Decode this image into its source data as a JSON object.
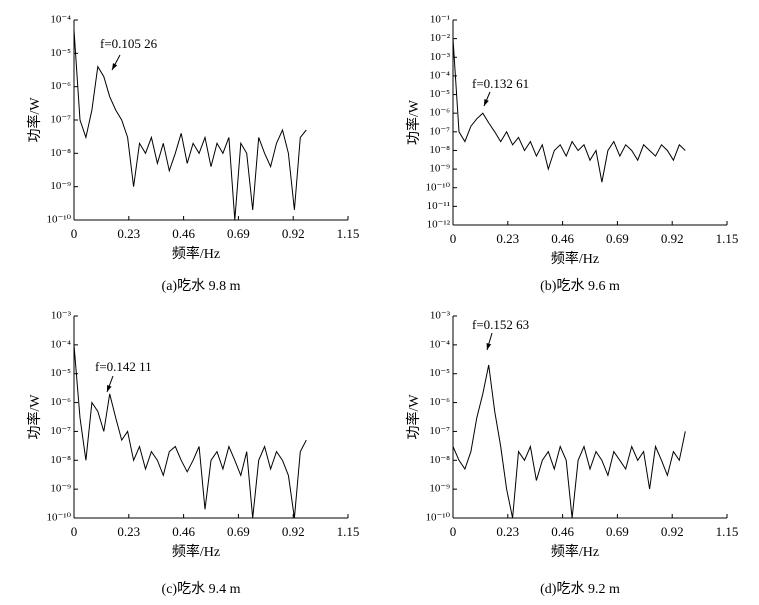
{
  "chart_data": [
    {
      "type": "line",
      "log_y": true,
      "color": "#000000",
      "y_label": "功率/W",
      "x_label": "频率/Hz",
      "caption": "(a)吃水 9.8 m",
      "annotation": "f=0.105 26",
      "xlim": [
        0,
        1.15
      ],
      "xticks": [
        0,
        0.23,
        0.46,
        0.69,
        0.92,
        1.15
      ],
      "ylim": [
        1e-10,
        0.0001
      ],
      "yticks": [
        {
          "value": 1e-10,
          "label": "10⁻¹⁰"
        },
        {
          "value": 1e-09,
          "label": "10⁻⁹"
        },
        {
          "value": 1e-08,
          "label": "10⁻⁸"
        },
        {
          "value": 1e-07,
          "label": "10⁻⁷"
        },
        {
          "value": 1e-06,
          "label": "10⁻⁶"
        },
        {
          "value": 1e-05,
          "label": "10⁻⁵"
        },
        {
          "value": 0.0001,
          "label": "10⁻⁴"
        }
      ],
      "x": [
        0,
        0.025,
        0.05,
        0.075,
        0.1,
        0.125,
        0.15,
        0.175,
        0.2,
        0.225,
        0.25,
        0.275,
        0.3,
        0.325,
        0.35,
        0.375,
        0.4,
        0.425,
        0.45,
        0.475,
        0.5,
        0.525,
        0.55,
        0.575,
        0.6,
        0.625,
        0.65,
        0.675,
        0.7,
        0.725,
        0.75,
        0.775,
        0.8,
        0.825,
        0.85,
        0.875,
        0.9,
        0.925,
        0.95,
        0.975
      ],
      "values": [
        5e-05,
        1e-07,
        3e-08,
        2e-07,
        4e-06,
        2e-06,
        5e-07,
        2e-07,
        1e-07,
        3e-08,
        1e-09,
        2e-08,
        1e-08,
        3e-08,
        5e-09,
        2e-08,
        3e-09,
        1e-08,
        4e-08,
        5e-09,
        2e-08,
        1e-08,
        3e-08,
        4e-09,
        2e-08,
        1e-08,
        3e-08,
        1e-10,
        2e-08,
        1e-08,
        2e-10,
        3e-08,
        1e-08,
        4e-09,
        2e-08,
        5e-08,
        1e-08,
        2e-10,
        3e-08,
        5e-08
      ]
    },
    {
      "type": "line",
      "log_y": true,
      "color": "#000000",
      "y_label": "功率/W",
      "x_label": "频率/Hz",
      "caption": "(b)吃水 9.6 m",
      "annotation": "f=0.132 61",
      "xlim": [
        0,
        1.15
      ],
      "xticks": [
        0,
        0.23,
        0.46,
        0.69,
        0.92,
        1.15
      ],
      "ylim": [
        1e-12,
        0.1
      ],
      "yticks": [
        {
          "value": 1e-12,
          "label": "10⁻¹²"
        },
        {
          "value": 1e-11,
          "label": "10⁻¹¹"
        },
        {
          "value": 1e-10,
          "label": "10⁻¹⁰"
        },
        {
          "value": 1e-09,
          "label": "10⁻⁹"
        },
        {
          "value": 1e-08,
          "label": "10⁻⁸"
        },
        {
          "value": 1e-07,
          "label": "10⁻⁷"
        },
        {
          "value": 1e-06,
          "label": "10⁻⁶"
        },
        {
          "value": 1e-05,
          "label": "10⁻⁵"
        },
        {
          "value": 0.0001,
          "label": "10⁻⁴"
        },
        {
          "value": 0.001,
          "label": "10⁻³"
        },
        {
          "value": 0.01,
          "label": "10⁻²"
        },
        {
          "value": 0.1,
          "label": "10⁻¹"
        }
      ],
      "x": [
        0,
        0.025,
        0.05,
        0.075,
        0.1,
        0.125,
        0.15,
        0.175,
        0.2,
        0.225,
        0.25,
        0.275,
        0.3,
        0.325,
        0.35,
        0.375,
        0.4,
        0.425,
        0.45,
        0.475,
        0.5,
        0.525,
        0.55,
        0.575,
        0.6,
        0.625,
        0.65,
        0.675,
        0.7,
        0.725,
        0.75,
        0.775,
        0.8,
        0.825,
        0.85,
        0.875,
        0.9,
        0.925,
        0.95,
        0.975
      ],
      "values": [
        0.01,
        1e-07,
        3e-08,
        2e-07,
        5e-07,
        1e-06,
        3e-07,
        1e-07,
        3e-08,
        1e-07,
        2e-08,
        5e-08,
        1e-08,
        3e-08,
        5e-09,
        2e-08,
        1e-09,
        1e-08,
        2e-08,
        5e-09,
        3e-08,
        1e-08,
        2e-08,
        3e-09,
        1e-08,
        2e-10,
        1e-08,
        3e-08,
        5e-09,
        2e-08,
        1e-08,
        3e-09,
        2e-08,
        1e-08,
        5e-09,
        2e-08,
        1e-08,
        3e-09,
        2e-08,
        1e-08
      ]
    },
    {
      "type": "line",
      "log_y": true,
      "color": "#000000",
      "y_label": "功率/W",
      "x_label": "频率/Hz",
      "caption": "(c)吃水 9.4 m",
      "annotation": "f=0.142 11",
      "xlim": [
        0,
        1.15
      ],
      "xticks": [
        0,
        0.23,
        0.46,
        0.69,
        0.92,
        1.15
      ],
      "ylim": [
        1e-10,
        0.001
      ],
      "yticks": [
        {
          "value": 1e-10,
          "label": "10⁻¹⁰"
        },
        {
          "value": 1e-09,
          "label": "10⁻⁹"
        },
        {
          "value": 1e-08,
          "label": "10⁻⁸"
        },
        {
          "value": 1e-07,
          "label": "10⁻⁷"
        },
        {
          "value": 1e-06,
          "label": "10⁻⁶"
        },
        {
          "value": 1e-05,
          "label": "10⁻⁵"
        },
        {
          "value": 0.0001,
          "label": "10⁻⁴"
        },
        {
          "value": 0.001,
          "label": "10⁻³"
        }
      ],
      "x": [
        0,
        0.025,
        0.05,
        0.075,
        0.1,
        0.125,
        0.15,
        0.175,
        0.2,
        0.225,
        0.25,
        0.275,
        0.3,
        0.325,
        0.35,
        0.375,
        0.4,
        0.425,
        0.45,
        0.475,
        0.5,
        0.525,
        0.55,
        0.575,
        0.6,
        0.625,
        0.65,
        0.675,
        0.7,
        0.725,
        0.75,
        0.775,
        0.8,
        0.825,
        0.85,
        0.875,
        0.9,
        0.925,
        0.95,
        0.975
      ],
      "values": [
        0.0001,
        3e-07,
        1e-08,
        1e-06,
        5e-07,
        1e-07,
        2e-06,
        3e-07,
        5e-08,
        1e-07,
        1e-08,
        3e-08,
        5e-09,
        2e-08,
        1e-08,
        3e-09,
        2e-08,
        3e-08,
        1e-08,
        4e-09,
        1e-08,
        3e-08,
        2e-10,
        1e-08,
        2e-08,
        5e-09,
        3e-08,
        1e-08,
        3e-09,
        2e-08,
        1e-10,
        1e-08,
        3e-08,
        5e-09,
        2e-08,
        1e-08,
        3e-09,
        1e-10,
        2e-08,
        5e-08
      ]
    },
    {
      "type": "line",
      "log_y": true,
      "color": "#000000",
      "y_label": "功率/W",
      "x_label": "频率/Hz",
      "caption": "(d)吃水 9.2 m",
      "annotation": "f=0.152 63",
      "xlim": [
        0,
        1.15
      ],
      "xticks": [
        0,
        0.23,
        0.46,
        0.69,
        0.92,
        1.15
      ],
      "ylim": [
        1e-10,
        0.001
      ],
      "yticks": [
        {
          "value": 1e-10,
          "label": "10⁻¹⁰"
        },
        {
          "value": 1e-09,
          "label": "10⁻⁹"
        },
        {
          "value": 1e-08,
          "label": "10⁻⁸"
        },
        {
          "value": 1e-07,
          "label": "10⁻⁷"
        },
        {
          "value": 1e-06,
          "label": "10⁻⁶"
        },
        {
          "value": 1e-05,
          "label": "10⁻⁵"
        },
        {
          "value": 0.0001,
          "label": "10⁻⁴"
        },
        {
          "value": 0.001,
          "label": "10⁻³"
        }
      ],
      "x": [
        0,
        0.025,
        0.05,
        0.075,
        0.1,
        0.125,
        0.15,
        0.175,
        0.2,
        0.225,
        0.25,
        0.275,
        0.3,
        0.325,
        0.35,
        0.375,
        0.4,
        0.425,
        0.45,
        0.475,
        0.5,
        0.525,
        0.55,
        0.575,
        0.6,
        0.625,
        0.65,
        0.675,
        0.7,
        0.725,
        0.75,
        0.775,
        0.8,
        0.825,
        0.85,
        0.875,
        0.9,
        0.925,
        0.95,
        0.975
      ],
      "values": [
        3e-08,
        1e-08,
        5e-09,
        2e-08,
        3e-07,
        2e-06,
        2e-05,
        5e-07,
        3e-08,
        1e-09,
        1e-10,
        2e-08,
        1e-08,
        3e-08,
        2e-09,
        1e-08,
        2e-08,
        5e-09,
        3e-08,
        1e-08,
        1e-10,
        1e-08,
        3e-08,
        5e-09,
        2e-08,
        1e-08,
        3e-09,
        2e-08,
        1e-08,
        5e-09,
        3e-08,
        1e-08,
        2e-08,
        1e-09,
        3e-08,
        1e-08,
        3e-09,
        2e-08,
        1e-08,
        1e-07
      ]
    }
  ]
}
